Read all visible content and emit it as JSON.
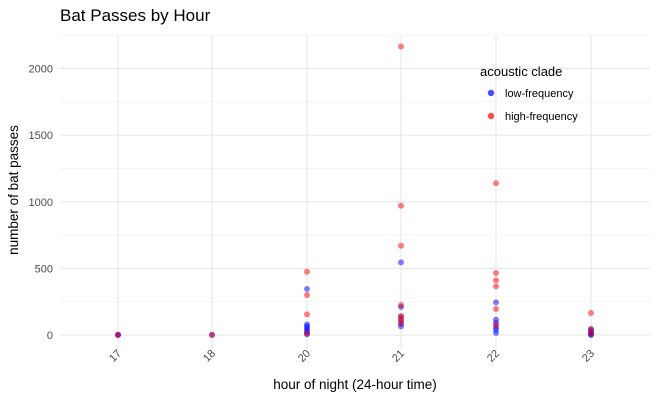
{
  "chart_data": {
    "type": "scatter",
    "title": "Bat Passes by Hour",
    "xlabel": "hour of night (24-hour time)",
    "ylabel": "number of bat passes",
    "x_categories": [
      "17",
      "18",
      "20",
      "21",
      "22",
      "23"
    ],
    "ylim": [
      0,
      2250
    ],
    "y_ticks": [
      0,
      500,
      1000,
      1500,
      2000
    ],
    "grid": true,
    "legend": {
      "title": "acoustic clade",
      "position": "top-right, inside plot"
    },
    "series": [
      {
        "name": "low-frequency",
        "color": "#0000ff",
        "points": [
          {
            "x": "17",
            "y": 0
          },
          {
            "x": "17",
            "y": 2
          },
          {
            "x": "18",
            "y": 1
          },
          {
            "x": "20",
            "y": 345
          },
          {
            "x": "20",
            "y": 80
          },
          {
            "x": "20",
            "y": 65
          },
          {
            "x": "20",
            "y": 50
          },
          {
            "x": "20",
            "y": 35
          },
          {
            "x": "20",
            "y": 20
          },
          {
            "x": "20",
            "y": 5
          },
          {
            "x": "21",
            "y": 545
          },
          {
            "x": "21",
            "y": 210
          },
          {
            "x": "21",
            "y": 140
          },
          {
            "x": "21",
            "y": 110
          },
          {
            "x": "21",
            "y": 85
          },
          {
            "x": "21",
            "y": 65
          },
          {
            "x": "22",
            "y": 245
          },
          {
            "x": "22",
            "y": 115
          },
          {
            "x": "22",
            "y": 90
          },
          {
            "x": "22",
            "y": 60
          },
          {
            "x": "22",
            "y": 40
          },
          {
            "x": "22",
            "y": 15
          },
          {
            "x": "23",
            "y": 45
          },
          {
            "x": "23",
            "y": 30
          },
          {
            "x": "23",
            "y": 15
          },
          {
            "x": "23",
            "y": 5
          },
          {
            "x": "23",
            "y": 0
          }
        ]
      },
      {
        "name": "high-frequency",
        "color": "#ff0000",
        "points": [
          {
            "x": "17",
            "y": 1
          },
          {
            "x": "18",
            "y": 0
          },
          {
            "x": "20",
            "y": 475
          },
          {
            "x": "20",
            "y": 300
          },
          {
            "x": "20",
            "y": 155
          },
          {
            "x": "20",
            "y": 10
          },
          {
            "x": "21",
            "y": 2165
          },
          {
            "x": "21",
            "y": 970
          },
          {
            "x": "21",
            "y": 670
          },
          {
            "x": "21",
            "y": 225
          },
          {
            "x": "21",
            "y": 140
          },
          {
            "x": "21",
            "y": 120
          },
          {
            "x": "21",
            "y": 90
          },
          {
            "x": "22",
            "y": 1140
          },
          {
            "x": "22",
            "y": 465
          },
          {
            "x": "22",
            "y": 410
          },
          {
            "x": "22",
            "y": 365
          },
          {
            "x": "22",
            "y": 195
          },
          {
            "x": "22",
            "y": 75
          },
          {
            "x": "23",
            "y": 165
          },
          {
            "x": "23",
            "y": 40
          },
          {
            "x": "23",
            "y": 10
          }
        ]
      }
    ]
  }
}
